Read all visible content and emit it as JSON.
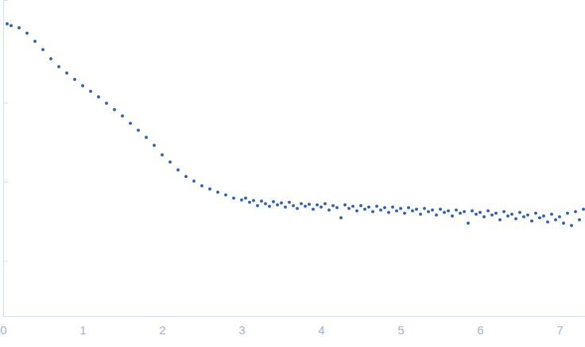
{
  "chart_data": {
    "type": "scatter",
    "log": "y",
    "tick_labels": "x",
    "color": "#2e60b8",
    "marker": "circle",
    "xlim": [
      0,
      7.32
    ],
    "xticks": [
      0,
      1,
      2,
      3,
      4,
      5,
      6,
      7
    ],
    "ylim": [
      0.0002,
      2
    ],
    "yticks": [
      0.001,
      0.01,
      0.1
    ],
    "x": [
      0.05,
      0.1,
      0.2,
      0.3,
      0.4,
      0.5,
      0.6,
      0.7,
      0.8,
      0.9,
      1.0,
      1.1,
      1.2,
      1.3,
      1.4,
      1.5,
      1.6,
      1.7,
      1.8,
      1.9,
      2.0,
      2.1,
      2.2,
      2.3,
      2.4,
      2.5,
      2.6,
      2.7,
      2.8,
      2.9,
      3.0,
      3.05,
      3.1,
      3.15,
      3.2,
      3.25,
      3.3,
      3.35,
      3.4,
      3.45,
      3.5,
      3.55,
      3.6,
      3.65,
      3.7,
      3.75,
      3.8,
      3.85,
      3.9,
      3.95,
      4.0,
      4.05,
      4.1,
      4.15,
      4.2,
      4.25,
      4.3,
      4.35,
      4.4,
      4.45,
      4.5,
      4.55,
      4.6,
      4.65,
      4.7,
      4.75,
      4.8,
      4.85,
      4.9,
      4.95,
      5.0,
      5.05,
      5.1,
      5.15,
      5.2,
      5.25,
      5.3,
      5.35,
      5.4,
      5.45,
      5.5,
      5.55,
      5.6,
      5.65,
      5.7,
      5.75,
      5.8,
      5.85,
      5.9,
      5.95,
      6.0,
      6.05,
      6.1,
      6.15,
      6.2,
      6.25,
      6.3,
      6.35,
      6.4,
      6.45,
      6.5,
      6.55,
      6.6,
      6.65,
      6.7,
      6.75,
      6.8,
      6.85,
      6.9,
      6.95,
      7.0,
      7.05,
      7.1,
      7.15,
      7.2,
      7.25,
      7.3
    ],
    "values": [
      1.0,
      0.95,
      0.89,
      0.76,
      0.6,
      0.47,
      0.36,
      0.286,
      0.238,
      0.198,
      0.164,
      0.14,
      0.119,
      0.099,
      0.082,
      0.068,
      0.055,
      0.045,
      0.0365,
      0.029,
      0.022,
      0.0178,
      0.0141,
      0.0117,
      0.0102,
      0.0089,
      0.0081,
      0.0074,
      0.0068,
      0.0062,
      0.0059,
      0.0062,
      0.0055,
      0.0058,
      0.005,
      0.0057,
      0.0053,
      0.0049,
      0.0056,
      0.0051,
      0.0054,
      0.0048,
      0.0055,
      0.005,
      0.0046,
      0.0053,
      0.0049,
      0.0052,
      0.0045,
      0.0051,
      0.0048,
      0.0053,
      0.0044,
      0.005,
      0.0047,
      0.0035,
      0.0051,
      0.0046,
      0.0049,
      0.0043,
      0.005,
      0.0045,
      0.0048,
      0.0042,
      0.0049,
      0.0044,
      0.0047,
      0.0041,
      0.0048,
      0.0043,
      0.0046,
      0.004,
      0.0047,
      0.0043,
      0.0045,
      0.0039,
      0.0046,
      0.0042,
      0.0044,
      0.0038,
      0.0045,
      0.0041,
      0.0043,
      0.0037,
      0.0044,
      0.004,
      0.0042,
      0.003,
      0.0043,
      0.0039,
      0.0041,
      0.0036,
      0.0043,
      0.0038,
      0.004,
      0.0033,
      0.0042,
      0.0037,
      0.0039,
      0.0034,
      0.0041,
      0.0036,
      0.0038,
      0.0032,
      0.004,
      0.0035,
      0.0037,
      0.0031,
      0.0039,
      0.0033,
      0.0036,
      0.003,
      0.004,
      0.0028,
      0.0042,
      0.0033,
      0.0045
    ]
  }
}
